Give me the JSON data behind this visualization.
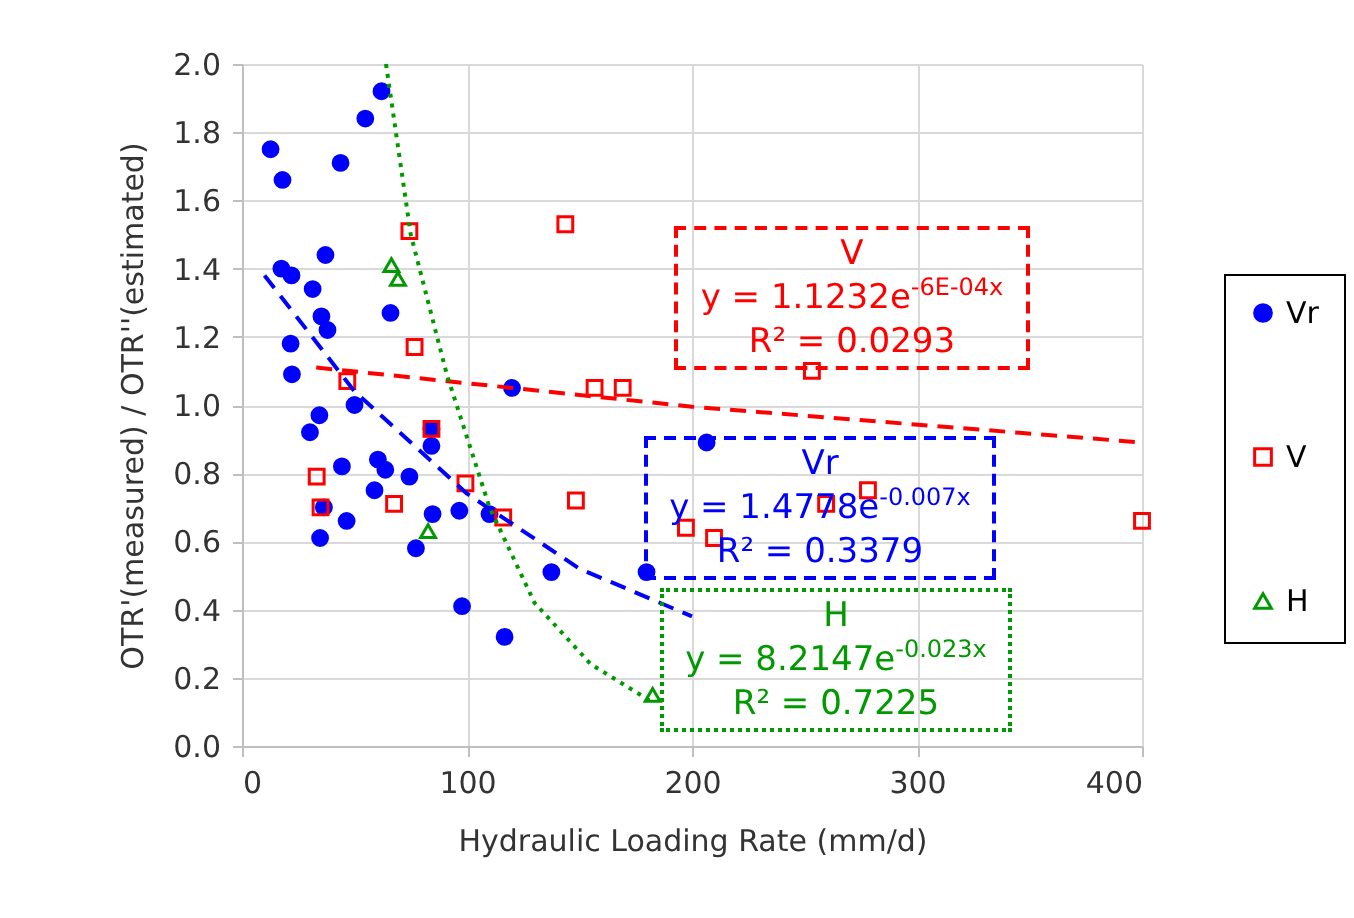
{
  "chart_data": {
    "type": "scatter",
    "xlabel": "Hydraulic Loading Rate (mm/d)",
    "ylabel": "OTR'(measured) / OTR''(estimated)",
    "xlim": [
      0,
      400
    ],
    "xticks": [
      0,
      100,
      200,
      300,
      400
    ],
    "ylim": [
      0,
      2
    ],
    "yticks": [
      {
        "value": 0,
        "label": "0.0"
      },
      0.2,
      0.4,
      0.6,
      0.8,
      {
        "value": 1,
        "label": "1.0"
      },
      1.2,
      1.4,
      1.6,
      1.8,
      {
        "value": 2,
        "label": "2.0"
      }
    ],
    "grid": true,
    "legend": "right",
    "series": [
      {
        "name": "Vr",
        "color": "#0000ff",
        "marker": "circle",
        "x": [
          12.7,
          18.0,
          43.8,
          54.8,
          62.0,
          37.1,
          17.5,
          22.0,
          31.4,
          35.3,
          38.0,
          66.0,
          21.6,
          22.2,
          50.0,
          34.4,
          30.2,
          84.2,
          44.4,
          60.4,
          63.7,
          58.9,
          74.4,
          36.4,
          46.5,
          34.7,
          84.7,
          96.6,
          110.0,
          77.3,
          97.8,
          84.2,
          120.0,
          206.5,
          137.5,
          179.8,
          116.7
        ],
        "values": [
          1.75,
          1.66,
          1.71,
          1.84,
          1.92,
          1.44,
          1.4,
          1.38,
          1.34,
          1.26,
          1.22,
          1.27,
          1.18,
          1.09,
          1.0,
          0.97,
          0.92,
          0.88,
          0.82,
          0.84,
          0.81,
          0.75,
          0.79,
          0.7,
          0.66,
          0.61,
          0.68,
          0.69,
          0.68,
          0.58,
          0.41,
          0.93,
          1.05,
          0.89,
          0.51,
          0.51,
          0.32
        ]
      },
      {
        "name": "V",
        "color": "#ff0000",
        "marker": "square",
        "x": [
          74.4,
          76.7,
          46.8,
          84.2,
          33.2,
          34.9,
          67.6,
          99.3,
          143.7,
          156.7,
          169.2,
          253.3,
          148.4,
          116.1,
          197.3,
          209.8,
          259.6,
          278.2,
          400
        ],
        "values": [
          1.51,
          1.17,
          1.07,
          0.93,
          0.79,
          0.7,
          0.71,
          0.77,
          1.53,
          1.05,
          1.05,
          1.1,
          0.72,
          0.67,
          0.64,
          0.61,
          0.71,
          0.75,
          0.66
        ]
      },
      {
        "name": "H",
        "color": "#009900",
        "marker": "triangle",
        "x": [
          66.4,
          69.3,
          82.7,
          182.5
        ],
        "values": [
          1.41,
          1.37,
          0.63,
          0.15
        ]
      },
      {
        "type": "line",
        "color": "#ff0000",
        "line_style": "dashed",
        "marker": "none",
        "x": [
          33,
          200,
          400
        ],
        "values": [
          1.11,
          0.995,
          0.89
        ]
      },
      {
        "type": "line",
        "color": "#0000ff",
        "line_style": "dashed",
        "marker": "none",
        "x": [
          10,
          50,
          100,
          150,
          200
        ],
        "values": [
          1.38,
          1.04,
          0.74,
          0.52,
          0.38
        ]
      },
      {
        "type": "line",
        "color": "#009900",
        "line_style": "dotted",
        "marker": "none",
        "x": [
          64,
          75,
          91,
          110,
          130,
          155,
          182
        ],
        "values": [
          2.0,
          1.5,
          1.09,
          0.7,
          0.42,
          0.24,
          0.13
        ]
      }
    ],
    "annotations": [
      "V\ny = 1.1232e$^{-6E-04x}$\nR² = 0.0293",
      "Vr\ny = 1.4778e$^{-0.007x}$\nR² = 0.3379",
      "H\ny = 8.2147e$^{-0.023x}$\nR² = 0.7225"
    ]
  }
}
